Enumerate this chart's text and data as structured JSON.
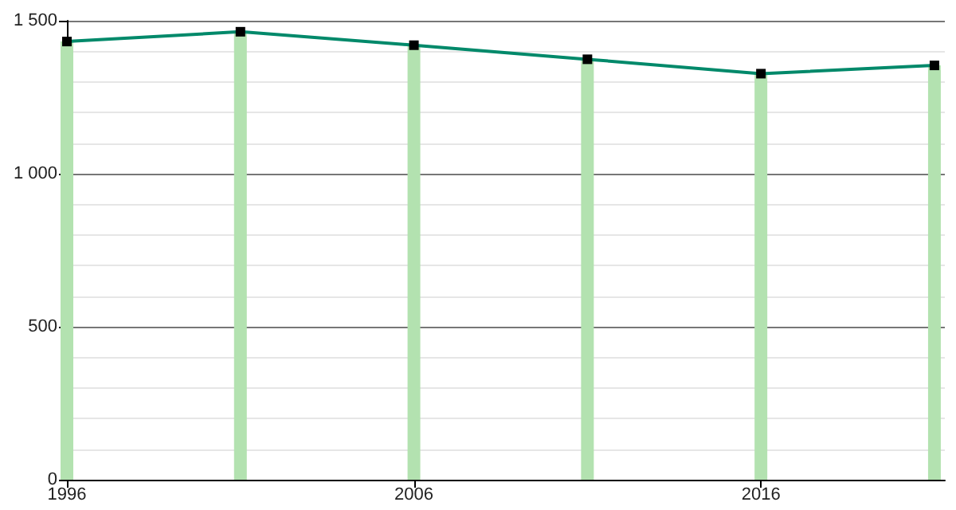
{
  "chart_data": {
    "type": "bar",
    "x": [
      1996,
      2001,
      2006,
      2011,
      2016,
      2021
    ],
    "series": [
      {
        "color": "#b3e2b0",
        "values": [
          1432,
          1464,
          1420,
          1374,
          1327,
          1354
        ]
      },
      {
        "type": "line",
        "color": "#00896a",
        "values": [
          1432,
          1464,
          1420,
          1374,
          1327,
          1354
        ],
        "marker": "square"
      }
    ],
    "xlim": [
      1996,
      2021.3
    ],
    "xticks": [
      1996,
      2006,
      2016
    ],
    "ylim": [
      0,
      1500
    ],
    "yticks": [
      0,
      500,
      {
        "value": 1000,
        "label": "1 000"
      },
      {
        "value": 1500,
        "label": "1 500"
      }
    ],
    "grid": "y"
  }
}
